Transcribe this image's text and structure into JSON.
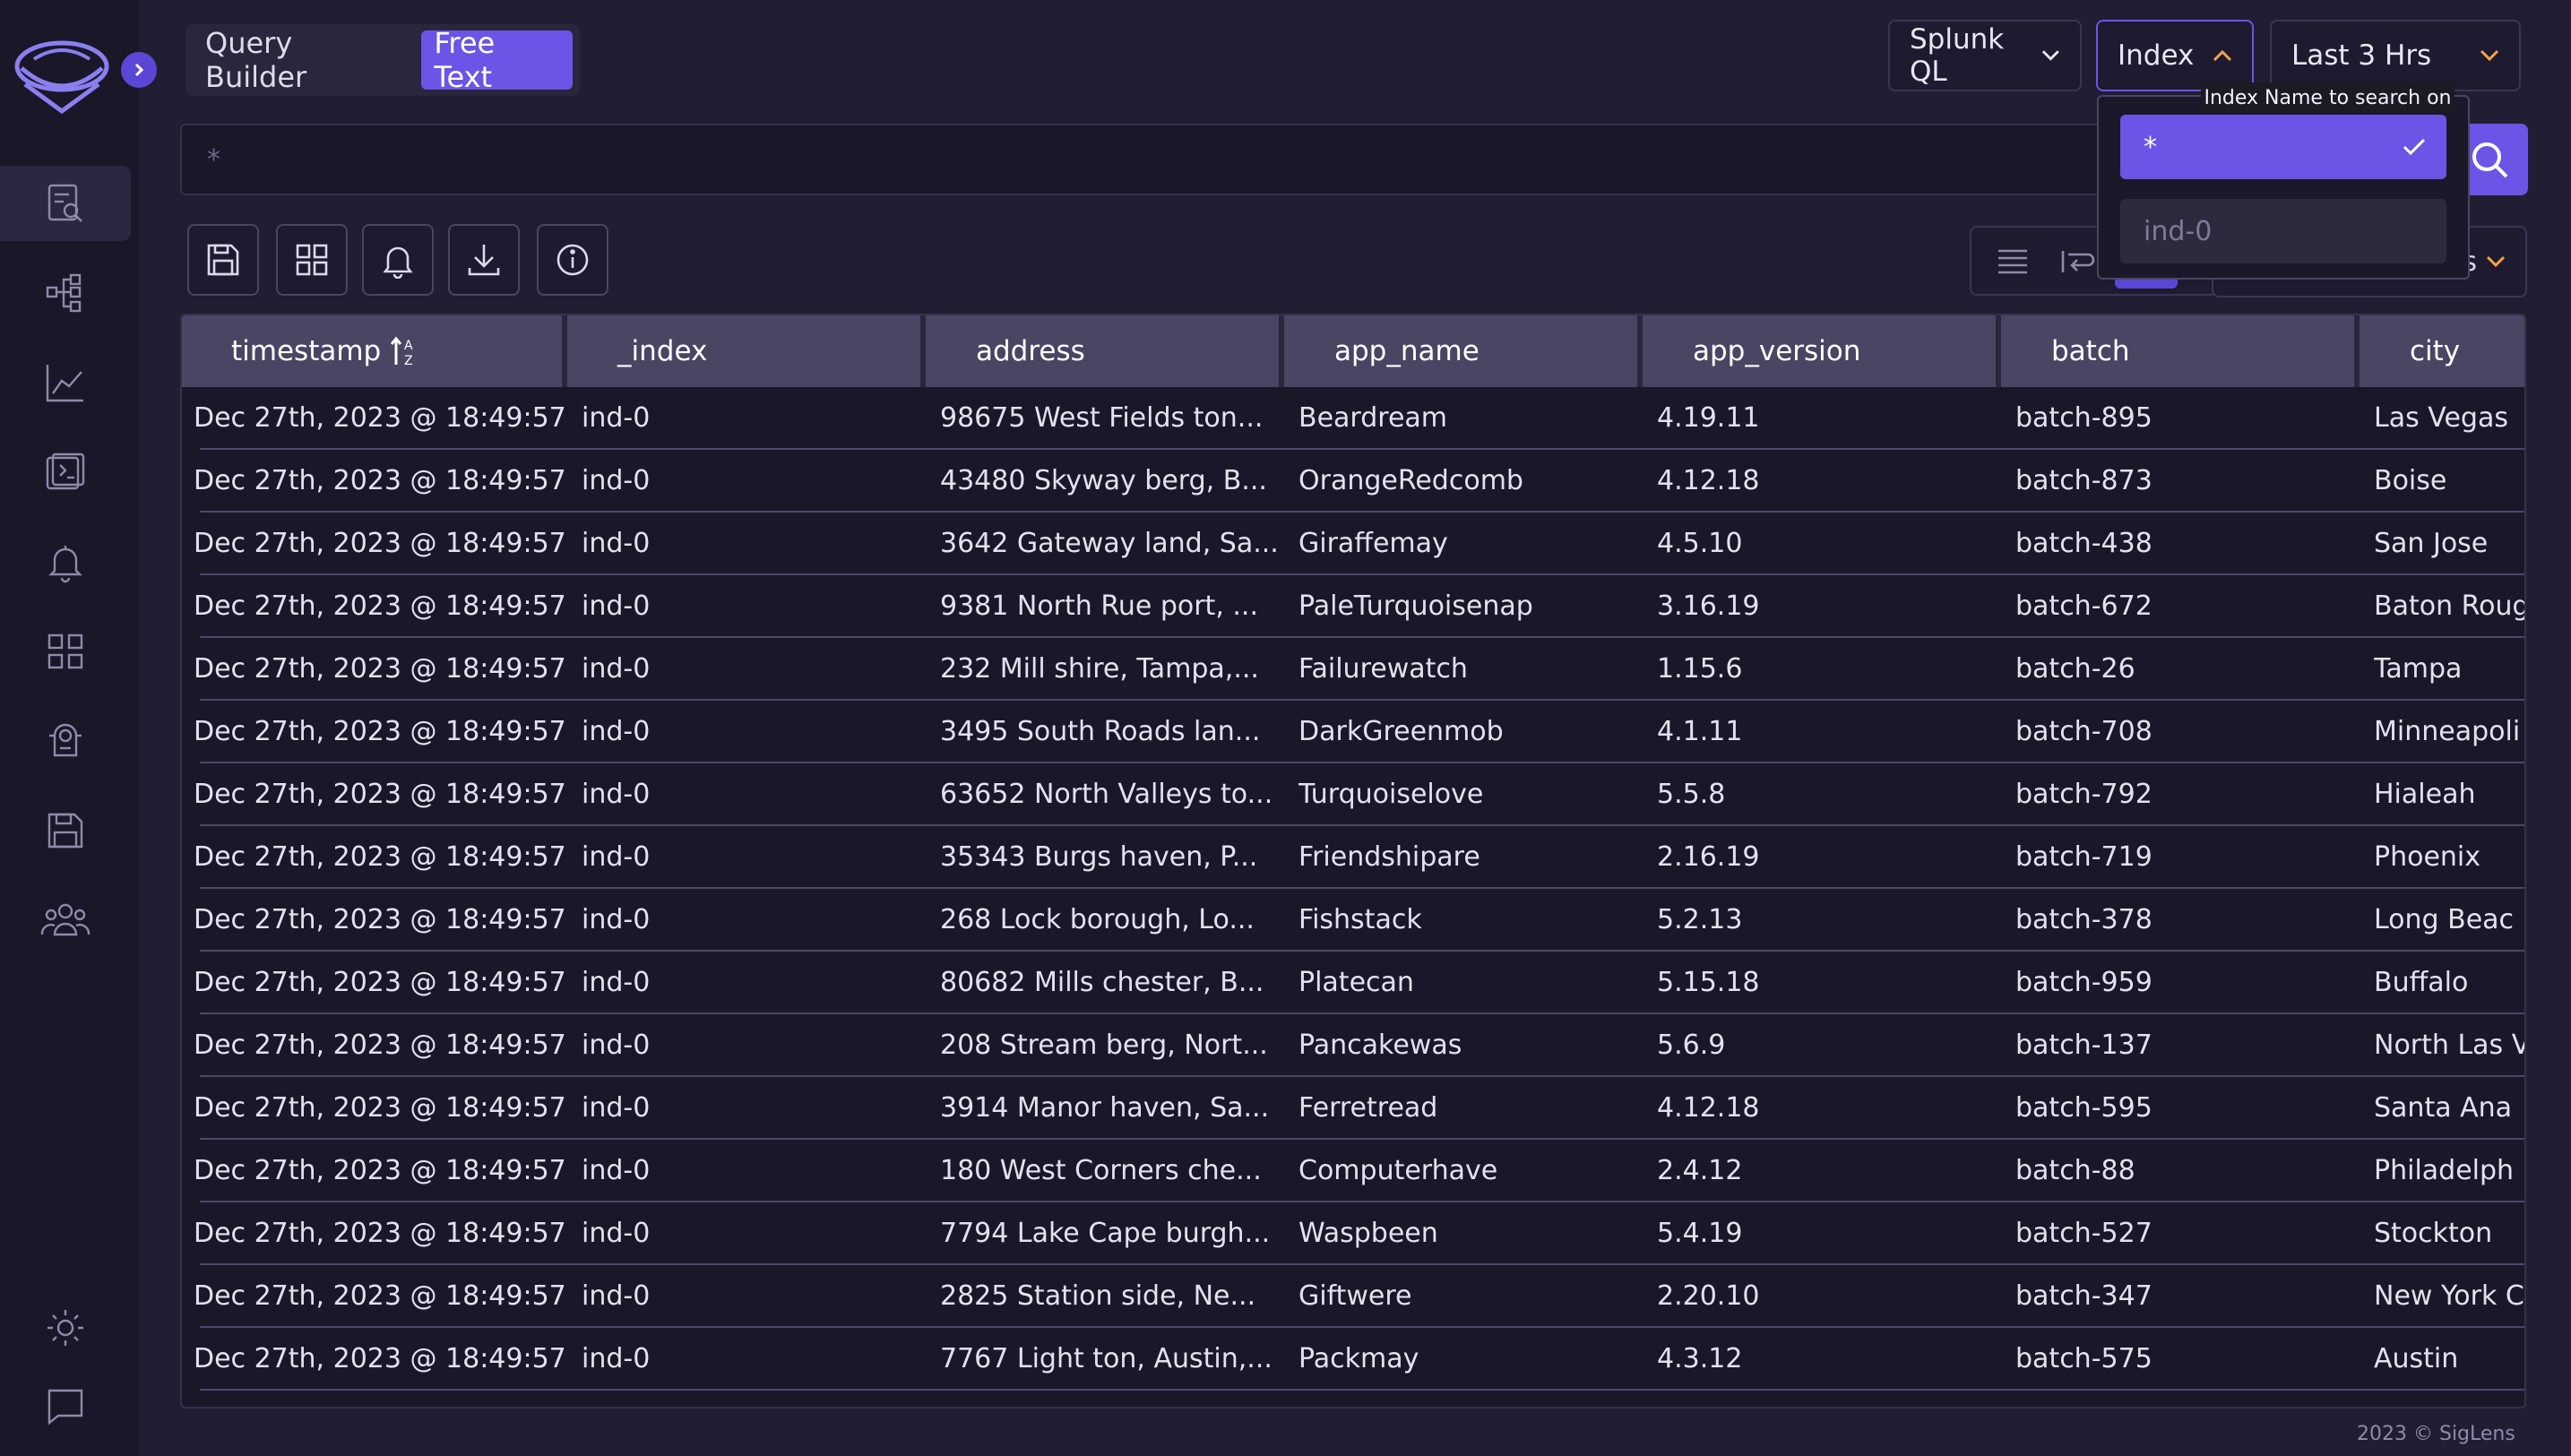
{
  "query_modes": {
    "builder": "Query Builder",
    "free_text": "Free Text"
  },
  "query_language": {
    "label": "Splunk QL"
  },
  "index_select": {
    "label": "Index",
    "tooltip": "Index Name to search on",
    "options": [
      "*",
      "ind-0"
    ]
  },
  "time_range": {
    "label": "Last 3 Hrs"
  },
  "search": {
    "placeholder": "*"
  },
  "columns_select": {
    "label_fragment": "s"
  },
  "table": {
    "columns": [
      "timestamp",
      "_index",
      "address",
      "app_name",
      "app_version",
      "batch",
      "city"
    ],
    "rows": [
      [
        "Dec 27th, 2023 @ 18:49:57",
        "ind-0",
        "98675 West Fields ton...",
        "Beardream",
        "4.19.11",
        "batch-895",
        "Las Vegas"
      ],
      [
        "Dec 27th, 2023 @ 18:49:57",
        "ind-0",
        "43480 Skyway berg, B...",
        "OrangeRedcomb",
        "4.12.18",
        "batch-873",
        "Boise"
      ],
      [
        "Dec 27th, 2023 @ 18:49:57",
        "ind-0",
        "3642 Gateway land, Sa...",
        "Giraffemay",
        "4.5.10",
        "batch-438",
        "San Jose"
      ],
      [
        "Dec 27th, 2023 @ 18:49:57",
        "ind-0",
        "9381 North Rue port, ...",
        "PaleTurquoisenap",
        "3.16.19",
        "batch-672",
        "Baton Roug"
      ],
      [
        "Dec 27th, 2023 @ 18:49:57",
        "ind-0",
        "232 Mill shire, Tampa,...",
        "Failurewatch",
        "1.15.6",
        "batch-26",
        "Tampa"
      ],
      [
        "Dec 27th, 2023 @ 18:49:57",
        "ind-0",
        "3495 South Roads lan...",
        "DarkGreenmob",
        "4.1.11",
        "batch-708",
        "Minneapoli"
      ],
      [
        "Dec 27th, 2023 @ 18:49:57",
        "ind-0",
        "63652 North Valleys to...",
        "Turquoiselove",
        "5.5.8",
        "batch-792",
        "Hialeah"
      ],
      [
        "Dec 27th, 2023 @ 18:49:57",
        "ind-0",
        "35343 Burgs haven, P...",
        "Friendshipare",
        "2.16.19",
        "batch-719",
        "Phoenix"
      ],
      [
        "Dec 27th, 2023 @ 18:49:57",
        "ind-0",
        "268 Lock borough, Lo...",
        "Fishstack",
        "5.2.13",
        "batch-378",
        "Long Beac"
      ],
      [
        "Dec 27th, 2023 @ 18:49:57",
        "ind-0",
        "80682 Mills chester, B...",
        "Platecan",
        "5.15.18",
        "batch-959",
        "Buffalo"
      ],
      [
        "Dec 27th, 2023 @ 18:49:57",
        "ind-0",
        "208 Stream berg, Nort...",
        "Pancakewas",
        "5.6.9",
        "batch-137",
        "North Las V"
      ],
      [
        "Dec 27th, 2023 @ 18:49:57",
        "ind-0",
        "3914 Manor haven, Sa...",
        "Ferretread",
        "4.12.18",
        "batch-595",
        "Santa Ana"
      ],
      [
        "Dec 27th, 2023 @ 18:49:57",
        "ind-0",
        "180 West Corners che...",
        "Computerhave",
        "2.4.12",
        "batch-88",
        "Philadelph"
      ],
      [
        "Dec 27th, 2023 @ 18:49:57",
        "ind-0",
        "7794 Lake Cape burgh...",
        "Waspbeen",
        "5.4.19",
        "batch-527",
        "Stockton"
      ],
      [
        "Dec 27th, 2023 @ 18:49:57",
        "ind-0",
        "2825 Station side, Ne...",
        "Giftwere",
        "2.20.10",
        "batch-347",
        "New York C"
      ],
      [
        "Dec 27th, 2023 @ 18:49:57",
        "ind-0",
        "7767 Light ton, Austin,...",
        "Packmay",
        "4.3.12",
        "batch-575",
        "Austin"
      ]
    ]
  },
  "footer": "2023 © SigLens",
  "colors": {
    "accent": "#6b55e6",
    "background": "#211d33",
    "sidebar": "#1a1729"
  }
}
